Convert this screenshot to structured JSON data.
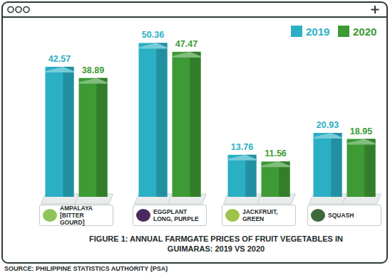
{
  "chart_data": {
    "type": "bar",
    "title": "FIGURE 1: ANNUAL FARMGATE PRICES OF FRUIT VEGETABLES IN GUIMARAS: 2019 VS 2020",
    "source": "SOURCE: PHILIPPINE STATISTICS AUTHORITY (PSA)",
    "categories": [
      "AMPALAYA [BITTER GOURD]",
      "EGGPLANT LONG, PURPLE",
      "JACKFRUIT, GREEN",
      "SQUASH"
    ],
    "series": [
      {
        "name": "2019",
        "color": "#2bafc5",
        "values": [
          42.57,
          50.36,
          13.76,
          20.93
        ]
      },
      {
        "name": "2020",
        "color": "#3d9a35",
        "values": [
          38.89,
          47.47,
          11.56,
          18.95
        ]
      }
    ],
    "ylim": [
      0,
      55
    ],
    "tick_labels": "x",
    "data_labels": true,
    "legend": "top-right",
    "grid": false
  }
}
